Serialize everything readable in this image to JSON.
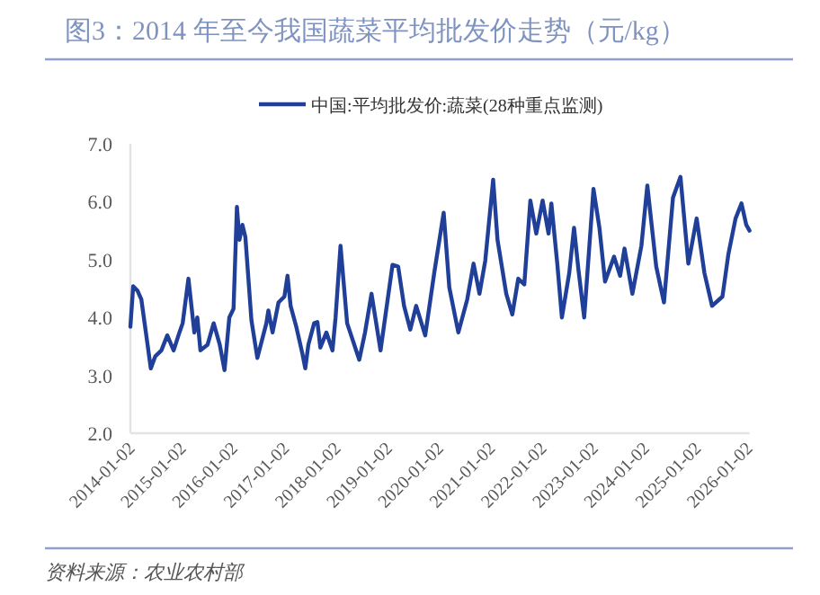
{
  "chart_data": {
    "type": "line",
    "title": "图3：2014 年至今我国蔬菜平均批发价走势（元/kg）",
    "annotations": [
      "资料来源：农业农村部"
    ],
    "legend": "top",
    "xlim": [
      "2014-01-02",
      "2026-01-12"
    ],
    "ylim": [
      2,
      7
    ],
    "yticks": [
      {
        "value": 2,
        "label": "2.0"
      },
      {
        "value": 3,
        "label": "3.0"
      },
      {
        "value": 4,
        "label": "4.0"
      },
      {
        "value": 5,
        "label": "5.0"
      },
      {
        "value": 6,
        "label": "6.0"
      },
      {
        "value": 7,
        "label": "7.0"
      }
    ],
    "xticks": [
      "2014-01-02",
      "2015-01-02",
      "2016-01-02",
      "2017-01-02",
      "2018-01-02",
      "2019-01-02",
      "2020-01-02",
      "2021-01-02",
      "2022-01-02",
      "2023-01-02",
      "2024-01-02",
      "2025-01-02",
      "2026-01-02"
    ],
    "x": [
      "2014-01-02",
      "2014-01-22",
      "2014-02-22",
      "2014-03-21",
      "2014-04-13",
      "2014-05-04",
      "2014-05-27",
      "2014-06-28",
      "2014-08-10",
      "2014-09-21",
      "2014-11-05",
      "2014-12-16",
      "2015-01-08",
      "2015-02-18",
      "2015-04-01",
      "2015-04-22",
      "2015-05-14",
      "2015-07-04",
      "2015-08-16",
      "2015-09-28",
      "2015-11-01",
      "2015-12-05",
      "2016-01-04",
      "2016-01-28",
      "2016-02-15",
      "2016-03-07",
      "2016-03-28",
      "2016-05-10",
      "2016-06-21",
      "2016-08-24",
      "2016-09-07",
      "2016-10-07",
      "2016-11-18",
      "2016-12-30",
      "2017-01-21",
      "2017-02-12",
      "2017-03-24",
      "2017-05-06",
      "2017-05-27",
      "2017-06-18",
      "2017-07-29",
      "2017-08-21",
      "2017-09-11",
      "2017-10-24",
      "2017-12-06",
      "2017-12-28",
      "2018-02-01",
      "2018-03-20",
      "2018-06-14",
      "2018-07-25",
      "2018-09-09",
      "2018-11-12",
      "2019-02-05",
      "2019-03-17",
      "2019-04-28",
      "2019-06-11",
      "2019-07-23",
      "2019-09-25",
      "2019-11-28",
      "2020-02-03",
      "2020-03-14",
      "2020-05-17",
      "2020-07-19",
      "2020-09-02",
      "2020-10-14",
      "2020-11-24",
      "2021-01-19",
      "2021-02-19",
      "2021-04-22",
      "2021-06-04",
      "2021-07-16",
      "2021-08-28",
      "2021-10-10",
      "2021-11-21",
      "2022-01-05",
      "2022-02-16",
      "2022-03-08",
      "2022-04-19",
      "2022-05-22",
      "2022-07-13",
      "2022-08-16",
      "2022-09-16",
      "2022-10-27",
      "2023-01-01",
      "2023-02-12",
      "2023-03-24",
      "2023-05-27",
      "2023-07-09",
      "2023-08-09",
      "2023-10-04",
      "2023-12-07",
      "2024-01-18",
      "2024-03-21",
      "2024-05-15",
      "2024-07-18",
      "2024-09-09",
      "2024-11-04",
      "2025-01-02",
      "2025-02-26",
      "2025-04-21",
      "2025-07-04",
      "2025-08-15",
      "2025-10-05",
      "2025-11-16",
      "2025-12-20",
      "2026-01-12"
    ],
    "series": [
      {
        "name": "中国:平均批发价:蔬菜(28种重点监测)",
        "color": "#1f3f99",
        "values": [
          3.84,
          4.54,
          4.46,
          4.31,
          3.9,
          3.53,
          3.12,
          3.33,
          3.43,
          3.69,
          3.43,
          3.74,
          3.9,
          4.67,
          3.74,
          4.0,
          3.43,
          3.53,
          3.9,
          3.53,
          3.09,
          4.0,
          4.15,
          5.91,
          5.34,
          5.6,
          5.39,
          3.95,
          3.3,
          3.9,
          4.12,
          3.74,
          4.26,
          4.36,
          4.72,
          4.2,
          3.84,
          3.38,
          3.12,
          3.53,
          3.9,
          3.92,
          3.48,
          3.74,
          3.43,
          4.0,
          5.24,
          3.9,
          3.27,
          3.74,
          4.41,
          3.43,
          4.91,
          4.88,
          4.2,
          3.79,
          4.2,
          3.69,
          4.77,
          5.81,
          4.52,
          3.74,
          4.31,
          4.93,
          4.41,
          4.98,
          6.38,
          5.34,
          4.41,
          4.05,
          4.67,
          4.57,
          6.02,
          5.45,
          6.02,
          5.45,
          5.97,
          4.93,
          4.0,
          4.77,
          5.55,
          4.83,
          4.0,
          6.22,
          5.55,
          4.62,
          5.05,
          4.72,
          5.19,
          4.41,
          5.24,
          6.28,
          4.88,
          4.26,
          6.07,
          6.43,
          4.93,
          5.71,
          4.77,
          4.2,
          4.36,
          5.09,
          5.71,
          5.97,
          5.6,
          5.5
        ]
      }
    ]
  }
}
